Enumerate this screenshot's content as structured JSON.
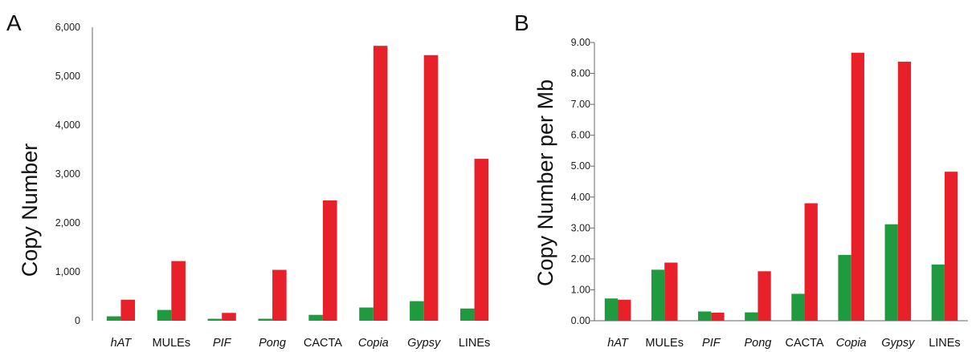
{
  "colors": {
    "series1": "#1f9a3f",
    "series2": "#e8202a"
  },
  "chart_data": [
    {
      "panel": "A",
      "type": "bar",
      "title": "",
      "xlabel": "",
      "ylabel": "Copy Number",
      "ylim": [
        0,
        6000
      ],
      "y_ticks": [
        0,
        1000,
        2000,
        3000,
        4000,
        5000,
        6000
      ],
      "y_tick_labels": [
        "0",
        "1,000",
        "2,000",
        "3,000",
        "4,000",
        "5,000",
        "6,000"
      ],
      "categories": [
        "hAT",
        "MULEs",
        "PIF",
        "Pong",
        "CACTA",
        "Copia",
        "Gypsy",
        "LINEs"
      ],
      "italic_categories": [
        "hAT",
        "PIF",
        "Pong",
        "Copia",
        "Gypsy"
      ],
      "series": [
        {
          "values": [
            90,
            220,
            40,
            40,
            120,
            270,
            400,
            250
          ]
        },
        {
          "values": [
            430,
            1220,
            160,
            1040,
            2460,
            5620,
            5430,
            3310
          ]
        }
      ],
      "grid": false,
      "legend": "none"
    },
    {
      "panel": "B",
      "type": "bar",
      "title": "",
      "xlabel": "",
      "ylabel": "Copy Number per Mb",
      "ylim": [
        0,
        9
      ],
      "y_ticks": [
        0,
        1,
        2,
        3,
        4,
        5,
        6,
        7,
        8,
        9
      ],
      "y_tick_labels": [
        "0.00",
        "1.00",
        "2.00",
        "3.00",
        "4.00",
        "5.00",
        "6.00",
        "7.00",
        "8.00",
        "9.00"
      ],
      "categories": [
        "hAT",
        "MULEs",
        "PIF",
        "Pong",
        "CACTA",
        "Copia",
        "Gypsy",
        "LINEs"
      ],
      "italic_categories": [
        "hAT",
        "PIF",
        "Pong",
        "Copia",
        "Gypsy"
      ],
      "series": [
        {
          "values": [
            0.72,
            1.65,
            0.3,
            0.27,
            0.87,
            2.13,
            3.12,
            1.82
          ]
        },
        {
          "values": [
            0.68,
            1.88,
            0.26,
            1.6,
            3.8,
            8.67,
            8.38,
            4.82
          ]
        }
      ],
      "grid": false,
      "legend": "none"
    }
  ]
}
